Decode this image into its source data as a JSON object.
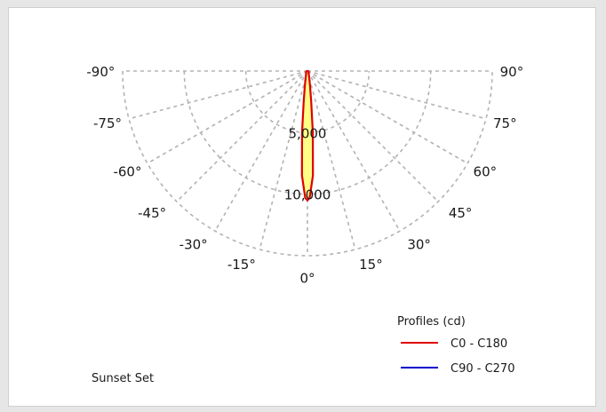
{
  "luminaire_name": "Sunset Set",
  "legend_title": "Profiles (cd)",
  "chart_data": {
    "type": "polar",
    "angle_ticks": [
      "-90°",
      "-75°",
      "-60°",
      "-45°",
      "-30°",
      "-15°",
      "0°",
      "15°",
      "30°",
      "45°",
      "60°",
      "75°",
      "90°"
    ],
    "angle_values": [
      -90,
      -75,
      -60,
      -45,
      -30,
      -15,
      0,
      15,
      30,
      45,
      60,
      75,
      90
    ],
    "radial_ticks": [
      5000,
      10000
    ],
    "radial_tick_labels": [
      "5,000",
      "10,000"
    ],
    "r_max": 15000,
    "series": [
      {
        "name": "C0 - C180",
        "color": "#e00000",
        "fill": "#ffff88",
        "points": [
          [
            -90,
            0
          ],
          [
            -80,
            50
          ],
          [
            -75,
            80
          ],
          [
            -60,
            120
          ],
          [
            -45,
            150
          ],
          [
            -30,
            200
          ],
          [
            -20,
            350
          ],
          [
            -15,
            550
          ],
          [
            -10,
            1200
          ],
          [
            -7,
            2500
          ],
          [
            -5,
            5000
          ],
          [
            -3,
            8500
          ],
          [
            -1,
            10300
          ],
          [
            0,
            10500
          ],
          [
            1,
            10300
          ],
          [
            3,
            8500
          ],
          [
            5,
            5000
          ],
          [
            7,
            2500
          ],
          [
            10,
            1200
          ],
          [
            15,
            550
          ],
          [
            20,
            350
          ],
          [
            30,
            200
          ],
          [
            45,
            150
          ],
          [
            60,
            120
          ],
          [
            75,
            80
          ],
          [
            80,
            50
          ],
          [
            90,
            0
          ]
        ]
      },
      {
        "name": "C90 - C270",
        "color": "#0000cc",
        "points": []
      }
    ]
  }
}
